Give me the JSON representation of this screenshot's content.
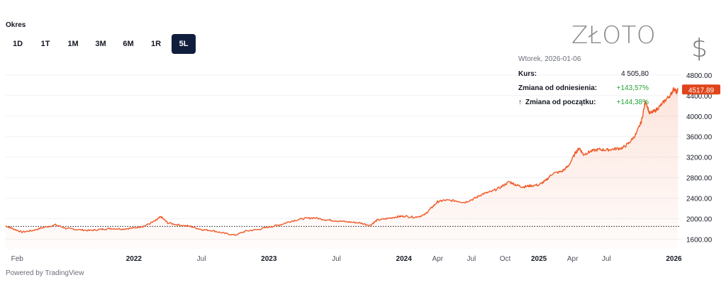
{
  "period": {
    "label": "Okres",
    "buttons": [
      "1D",
      "1T",
      "1M",
      "3M",
      "6M",
      "1R",
      "5L"
    ],
    "active": "5L"
  },
  "watermark": {
    "title": "ZŁOTO",
    "currency_symbol": "$"
  },
  "info": {
    "date": "Wtorek, 2026-01-06",
    "kurs_label": "Kurs:",
    "kurs_value": "4 505,80",
    "zmiana_ref_label": "Zmiana od odniesienia:",
    "zmiana_ref_value": "+143,57%",
    "zmiana_start_label": "Zmiana od początku:",
    "zmiana_start_value": "+144,38%",
    "positive_color": "#26a336"
  },
  "footer": {
    "powered": "Powered by TradingView"
  },
  "chart_data": {
    "type": "area",
    "line_color": "#f05a28",
    "ylim": [
      1400,
      4950
    ],
    "x_range": [
      2021.05,
      2026.05
    ],
    "yticks": [
      1600,
      2000,
      2400,
      2800,
      3200,
      3600,
      4000,
      4400,
      4800
    ],
    "ytick_labels": [
      "1600.00",
      "2000.00",
      "2400.00",
      "2800.00",
      "3200.00",
      "3600.00",
      "4000.00",
      "4400.00",
      "4800.00"
    ],
    "xticks": [
      {
        "label": "Feb",
        "x": 2021.09,
        "bold": false
      },
      {
        "label": "2022",
        "x": 2022.0,
        "bold": true
      },
      {
        "label": "Jul",
        "x": 2022.5,
        "bold": false
      },
      {
        "label": "2023",
        "x": 2023.0,
        "bold": true
      },
      {
        "label": "Jul",
        "x": 2023.5,
        "bold": false
      },
      {
        "label": "2024",
        "x": 2024.0,
        "bold": true
      },
      {
        "label": "Apr",
        "x": 2024.25,
        "bold": false
      },
      {
        "label": "Jul",
        "x": 2024.5,
        "bold": false
      },
      {
        "label": "Oct",
        "x": 2024.75,
        "bold": false
      },
      {
        "label": "2025",
        "x": 2025.0,
        "bold": true
      },
      {
        "label": "Apr",
        "x": 2025.25,
        "bold": false
      },
      {
        "label": "Jul",
        "x": 2025.5,
        "bold": false
      },
      {
        "label": "2026",
        "x": 2026.0,
        "bold": true
      }
    ],
    "reference_value": 1850,
    "last_value": 4517.89,
    "last_label": "4517.89",
    "last_label_color": "#e0441a",
    "series": [
      {
        "values": [
          [
            2021.05,
            1860
          ],
          [
            2021.1,
            1810
          ],
          [
            2021.17,
            1740
          ],
          [
            2021.25,
            1770
          ],
          [
            2021.33,
            1830
          ],
          [
            2021.42,
            1880
          ],
          [
            2021.5,
            1810
          ],
          [
            2021.58,
            1790
          ],
          [
            2021.67,
            1770
          ],
          [
            2021.75,
            1790
          ],
          [
            2021.83,
            1810
          ],
          [
            2021.92,
            1800
          ],
          [
            2022.0,
            1820
          ],
          [
            2022.08,
            1860
          ],
          [
            2022.16,
            1960
          ],
          [
            2022.2,
            2040
          ],
          [
            2022.25,
            1920
          ],
          [
            2022.33,
            1880
          ],
          [
            2022.42,
            1850
          ],
          [
            2022.5,
            1790
          ],
          [
            2022.58,
            1770
          ],
          [
            2022.66,
            1720
          ],
          [
            2022.75,
            1680
          ],
          [
            2022.83,
            1760
          ],
          [
            2022.92,
            1790
          ],
          [
            2023.0,
            1840
          ],
          [
            2023.08,
            1880
          ],
          [
            2023.16,
            1950
          ],
          [
            2023.25,
            2000
          ],
          [
            2023.33,
            2020
          ],
          [
            2023.42,
            1980
          ],
          [
            2023.5,
            1960
          ],
          [
            2023.58,
            1940
          ],
          [
            2023.67,
            1920
          ],
          [
            2023.75,
            1870
          ],
          [
            2023.8,
            1970
          ],
          [
            2023.87,
            2000
          ],
          [
            2023.95,
            2040
          ],
          [
            2024.0,
            2050
          ],
          [
            2024.08,
            2030
          ],
          [
            2024.15,
            2070
          ],
          [
            2024.2,
            2200
          ],
          [
            2024.25,
            2330
          ],
          [
            2024.3,
            2360
          ],
          [
            2024.38,
            2350
          ],
          [
            2024.45,
            2320
          ],
          [
            2024.52,
            2390
          ],
          [
            2024.58,
            2480
          ],
          [
            2024.65,
            2530
          ],
          [
            2024.72,
            2620
          ],
          [
            2024.78,
            2720
          ],
          [
            2024.83,
            2660
          ],
          [
            2024.88,
            2620
          ],
          [
            2024.93,
            2640
          ],
          [
            2025.0,
            2660
          ],
          [
            2025.05,
            2740
          ],
          [
            2025.1,
            2880
          ],
          [
            2025.17,
            2920
          ],
          [
            2025.22,
            3030
          ],
          [
            2025.27,
            3280
          ],
          [
            2025.3,
            3380
          ],
          [
            2025.33,
            3250
          ],
          [
            2025.38,
            3310
          ],
          [
            2025.44,
            3350
          ],
          [
            2025.5,
            3340
          ],
          [
            2025.56,
            3360
          ],
          [
            2025.62,
            3380
          ],
          [
            2025.67,
            3480
          ],
          [
            2025.72,
            3650
          ],
          [
            2025.76,
            3900
          ],
          [
            2025.79,
            4300
          ],
          [
            2025.82,
            4050
          ],
          [
            2025.86,
            4100
          ],
          [
            2025.9,
            4200
          ],
          [
            2025.94,
            4320
          ],
          [
            2025.98,
            4430
          ],
          [
            2026.0,
            4540
          ],
          [
            2026.02,
            4460
          ],
          [
            2026.03,
            4517.89
          ]
        ]
      }
    ]
  }
}
